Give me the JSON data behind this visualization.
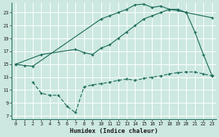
{
  "xlabel": "Humidex (Indice chaleur)",
  "bg_color": "#cce8e0",
  "grid_color": "#b8d8d0",
  "line_color": "#1a6b5a",
  "xlim": [
    -0.5,
    23.5
  ],
  "ylim": [
    6.5,
    24.5
  ],
  "xticks": [
    0,
    1,
    2,
    3,
    4,
    5,
    6,
    7,
    8,
    9,
    10,
    11,
    12,
    13,
    14,
    15,
    16,
    17,
    18,
    19,
    20,
    21,
    22,
    23
  ],
  "yticks": [
    7,
    9,
    11,
    13,
    15,
    17,
    19,
    21,
    23
  ],
  "line1_x": [
    0,
    1,
    2,
    10,
    11,
    12,
    13,
    14,
    15,
    16,
    17,
    18,
    19,
    20,
    21,
    22,
    23
  ],
  "line1_y": [
    15,
    14.8,
    14.7,
    22.0,
    22.5,
    23.0,
    23.5,
    24.2,
    24.3,
    23.8,
    24.0,
    23.5,
    23.3,
    23.0,
    20.0,
    16.5,
    13.3
  ],
  "line2_x": [
    0,
    3,
    7,
    8,
    9,
    10,
    11,
    12,
    13,
    14,
    15,
    16,
    17,
    18,
    19,
    20,
    23
  ],
  "line2_y": [
    15,
    16.5,
    17.3,
    16.8,
    16.5,
    17.5,
    18.0,
    19.0,
    20.0,
    21.0,
    22.0,
    22.5,
    23.0,
    23.5,
    23.5,
    23.0,
    22.2
  ],
  "line3_x": [
    2,
    3,
    4,
    5,
    6,
    7,
    8,
    9,
    10,
    11,
    12,
    13,
    14,
    15,
    16,
    17,
    18,
    19,
    20,
    21,
    22,
    23
  ],
  "line3_y": [
    12.2,
    10.5,
    10.2,
    10.2,
    8.5,
    7.5,
    11.5,
    11.8,
    12.0,
    12.2,
    12.5,
    12.7,
    12.5,
    12.8,
    13.0,
    13.2,
    13.5,
    13.7,
    13.8,
    13.8,
    13.5,
    13.2
  ]
}
